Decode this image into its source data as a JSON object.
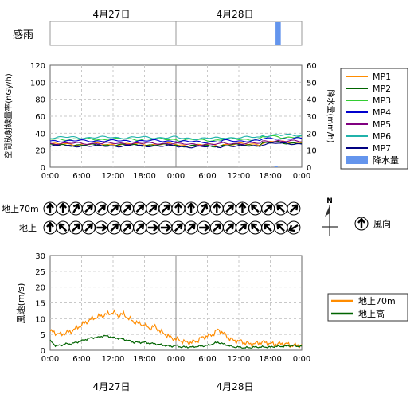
{
  "header": {
    "dates": [
      "4月27日",
      "4月28日"
    ]
  },
  "rain_panel": {
    "label": "感雨",
    "rain_color": "#6495ed",
    "rain_events": [
      {
        "start_hour": 43.0,
        "end_hour": 44.0
      }
    ]
  },
  "wind_dir_panel": {
    "row_labels": [
      "地上70m",
      "地上"
    ],
    "north_label": "N",
    "legend_label": "風向",
    "dirs_70m": [
      0,
      0,
      30,
      45,
      45,
      45,
      45,
      45,
      45,
      45,
      0,
      0,
      30,
      0,
      45,
      0,
      315,
      45,
      315,
      45
    ],
    "dirs_ground": [
      0,
      315,
      45,
      45,
      90,
      45,
      45,
      45,
      90,
      90,
      45,
      45,
      90,
      45,
      45,
      45,
      315,
      315,
      315,
      240
    ]
  },
  "xaxis": {
    "ticks": [
      "0:00",
      "6:00",
      "12:00",
      "18:00",
      "0:00",
      "6:00",
      "12:00",
      "18:00",
      "0:00"
    ],
    "bottom_dates": [
      "4月27日",
      "4月28日"
    ]
  },
  "chart_data": [
    {
      "type": "line",
      "ylabel": "空間放射線量率(nGy/h)",
      "y2label": "降水量(mm/h)",
      "ylim": [
        0,
        120
      ],
      "yticks": [
        0,
        20,
        40,
        60,
        80,
        100,
        120
      ],
      "y2lim": [
        0,
        60
      ],
      "y2ticks": [
        0,
        10,
        20,
        30,
        40,
        50,
        60
      ],
      "xlim_hours": [
        0,
        48
      ],
      "grid": true,
      "legend_position": "right",
      "series": [
        {
          "name": "MP1",
          "color": "#ff8c00",
          "base": 27,
          "amp": 1.5
        },
        {
          "name": "MP2",
          "color": "#006400",
          "base": 26,
          "amp": 1.2
        },
        {
          "name": "MP3",
          "color": "#32cd32",
          "base": 33,
          "amp": 1.5
        },
        {
          "name": "MP4",
          "color": "#0000cd",
          "base": 31,
          "amp": 1.2
        },
        {
          "name": "MP5",
          "color": "#800080",
          "base": 28,
          "amp": 1.2
        },
        {
          "name": "MP6",
          "color": "#20b2aa",
          "base": 35,
          "amp": 1.5
        },
        {
          "name": "MP7",
          "color": "#000080",
          "base": 25,
          "amp": 1.0
        }
      ],
      "precip": {
        "name": "降水量",
        "color": "#6495ed",
        "values": []
      }
    },
    {
      "type": "line",
      "ylabel": "風速(m/s)",
      "ylim": [
        0,
        30
      ],
      "yticks": [
        0,
        5,
        10,
        15,
        20,
        25,
        30
      ],
      "xlim_hours": [
        0,
        48
      ],
      "grid": true,
      "legend_position": "right",
      "series": [
        {
          "name": "地上70m",
          "color": "#ff8c00",
          "x": [
            0,
            1,
            2,
            3,
            4,
            5,
            6,
            7,
            8,
            9,
            10,
            11,
            12,
            13,
            14,
            15,
            16,
            17,
            18,
            19,
            20,
            21,
            22,
            23,
            24,
            25,
            26,
            27,
            28,
            29,
            30,
            31,
            32,
            33,
            34,
            35,
            36,
            37,
            38,
            39,
            40,
            41,
            42,
            43,
            44,
            45,
            46,
            47,
            48
          ],
          "values": [
            6,
            5.5,
            5,
            5.5,
            6,
            7,
            8,
            9,
            10,
            10.5,
            11,
            11.5,
            12,
            11,
            11.5,
            10,
            9,
            8.5,
            8,
            7,
            7.5,
            6,
            5,
            4,
            3.5,
            3,
            2.5,
            2.5,
            3,
            4,
            4.5,
            5,
            6.5,
            5.5,
            4,
            3,
            3,
            2.5,
            2,
            2,
            2.5,
            2.5,
            2,
            2,
            2,
            2,
            1.5,
            1.5,
            1.5
          ]
        },
        {
          "name": "地上高",
          "color": "#006400",
          "x": [
            0,
            1,
            2,
            3,
            4,
            5,
            6,
            7,
            8,
            9,
            10,
            11,
            12,
            13,
            14,
            15,
            16,
            17,
            18,
            19,
            20,
            21,
            22,
            23,
            24,
            25,
            26,
            27,
            28,
            29,
            30,
            31,
            32,
            33,
            34,
            35,
            36,
            37,
            38,
            39,
            40,
            41,
            42,
            43,
            44,
            45,
            46,
            47,
            48
          ],
          "values": [
            3,
            1.5,
            1.5,
            2,
            2,
            2.5,
            3,
            3.5,
            4,
            4,
            4.5,
            4.5,
            4,
            3.8,
            3.5,
            3,
            2.5,
            2.5,
            2.5,
            2.2,
            2,
            1.8,
            1.5,
            1.2,
            1.5,
            1,
            1,
            1,
            1.2,
            1.3,
            1.5,
            2,
            2.5,
            2,
            1.5,
            1,
            1,
            0.8,
            0.8,
            1,
            1,
            1,
            1,
            1.2,
            1.2,
            1.3,
            1.5,
            1.3,
            1.2
          ]
        }
      ]
    }
  ]
}
